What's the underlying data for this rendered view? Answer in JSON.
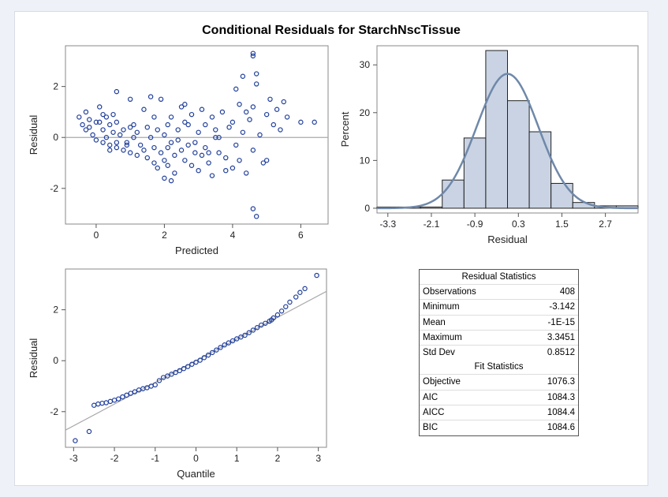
{
  "page_title": "Conditional Residuals for StarchNscTissue",
  "colors": {
    "marker": "#1f3e9b",
    "bar_fill": "#c9d3e3",
    "curve": "#6f88aa",
    "ref_line": "#aaaaaa"
  },
  "chart_data": [
    {
      "id": "residual_vs_predicted",
      "type": "scatter",
      "xlabel": "Predicted",
      "ylabel": "Residual",
      "xlim": [
        -0.9,
        6.8
      ],
      "ylim": [
        -3.4,
        3.6
      ],
      "xticks": [
        0,
        2,
        4,
        6
      ],
      "yticks": [
        -2,
        0,
        2
      ],
      "reference_line_y": 0,
      "points_note": "408 observations; representative subset reproduced",
      "x": [
        -0.5,
        -0.4,
        -0.3,
        -0.2,
        -0.2,
        -0.1,
        0.0,
        0.1,
        0.1,
        0.2,
        0.2,
        0.3,
        0.3,
        0.4,
        0.4,
        0.5,
        0.5,
        0.6,
        0.6,
        0.7,
        0.8,
        0.8,
        0.9,
        1.0,
        1.0,
        1.1,
        1.2,
        1.2,
        1.3,
        1.4,
        1.5,
        1.5,
        1.6,
        1.7,
        1.7,
        1.8,
        1.8,
        1.9,
        2.0,
        2.0,
        2.1,
        2.1,
        2.2,
        2.2,
        2.3,
        2.3,
        2.4,
        2.5,
        2.5,
        2.6,
        2.6,
        2.7,
        2.8,
        2.8,
        2.9,
        3.0,
        3.0,
        3.1,
        3.2,
        3.2,
        3.3,
        3.4,
        3.4,
        3.5,
        3.6,
        3.7,
        3.8,
        3.9,
        4.0,
        4.0,
        4.1,
        4.2,
        4.2,
        4.3,
        4.4,
        4.5,
        4.6,
        4.6,
        4.7,
        4.8,
        4.9,
        5.0,
        5.1,
        5.2,
        5.3,
        5.5,
        5.6,
        6.0,
        6.4,
        -0.3,
        0.2,
        0.6,
        1.1,
        1.6,
        2.1,
        2.6,
        3.1,
        3.6,
        4.1,
        4.6,
        4.6,
        4.7,
        4.6,
        4.7,
        0.6,
        1.9,
        2.4,
        3.3,
        0.0,
        0.9,
        1.4,
        2.7,
        3.8,
        4.3,
        5.0,
        5.4,
        2.0,
        2.9,
        1.0,
        0.4,
        1.7,
        3.5,
        4.4,
        2.2
      ],
      "y": [
        0.8,
        0.5,
        1.0,
        0.4,
        0.7,
        0.1,
        -0.1,
        0.6,
        1.2,
        0.3,
        -0.2,
        0.8,
        0.0,
        -0.3,
        0.5,
        0.9,
        0.2,
        -0.4,
        0.6,
        0.1,
        -0.5,
        0.3,
        -0.2,
        -0.6,
        0.4,
        0.0,
        -0.7,
        0.2,
        -0.3,
        -0.5,
        0.4,
        -0.8,
        0.0,
        -1.0,
        -0.4,
        0.3,
        -1.2,
        -0.6,
        0.1,
        -0.9,
        0.5,
        -1.1,
        -0.2,
        0.8,
        -0.7,
        -1.4,
        0.3,
        -0.5,
        1.2,
        -0.9,
        0.6,
        -0.3,
        -1.1,
        0.9,
        -0.6,
        0.2,
        -1.3,
        1.1,
        -0.4,
        0.5,
        -1.0,
        0.8,
        -1.5,
        0.3,
        -0.6,
        1.0,
        -0.8,
        0.4,
        -1.2,
        0.6,
        -0.3,
        1.3,
        -0.9,
        0.2,
        -1.4,
        0.7,
        -0.5,
        1.2,
        2.1,
        0.1,
        -1.0,
        0.9,
        1.5,
        0.5,
        1.1,
        1.4,
        0.8,
        0.6,
        0.6,
        0.3,
        0.9,
        -0.2,
        0.5,
        1.6,
        -0.4,
        1.3,
        -0.7,
        0.0,
        1.9,
        3.3,
        -2.8,
        -3.1,
        3.2,
        2.5,
        1.8,
        1.5,
        -0.1,
        -0.6,
        0.6,
        -0.3,
        1.1,
        0.5,
        -1.3,
        2.4,
        -0.9,
        0.3,
        -1.6,
        -0.2,
        1.5,
        -0.5,
        0.8,
        0.0,
        1.0,
        -1.7
      ]
    },
    {
      "id": "residual_histogram",
      "type": "bar",
      "xlabel": "Residual",
      "ylabel": "Percent",
      "xlim": [
        -3.6,
        3.6
      ],
      "ylim": [
        -1,
        34
      ],
      "xticks": [
        -3.3,
        -2.1,
        -0.9,
        0.3,
        1.5,
        2.7
      ],
      "yticks": [
        0,
        10,
        20,
        30
      ],
      "bin_edges": [
        -3.6,
        -3.0,
        -2.4,
        -1.8,
        -1.2,
        -0.6,
        0.0,
        0.6,
        1.2,
        1.8,
        2.4,
        3.0,
        3.6
      ],
      "values": [
        0.25,
        0.25,
        0.25,
        5.9,
        14.7,
        33.0,
        22.5,
        16.0,
        5.2,
        1.2,
        0.5,
        0.5
      ],
      "normal_curve": {
        "mean": 0.0,
        "sd": 0.8512,
        "bin_width": 0.6
      }
    },
    {
      "id": "qq_plot",
      "type": "scatter",
      "xlabel": "Quantile",
      "ylabel": "Residual",
      "xlim": [
        -3.2,
        3.2
      ],
      "ylim": [
        -3.4,
        3.6
      ],
      "xticks": [
        -3,
        -2,
        -1,
        0,
        1,
        2,
        3
      ],
      "yticks": [
        -2,
        0,
        2
      ],
      "reference_line": {
        "intercept": 0.0,
        "slope": 0.8512
      },
      "x": [
        -2.96,
        -2.62,
        -2.5,
        -2.4,
        -2.3,
        -2.2,
        -2.1,
        -2.0,
        -1.9,
        -1.8,
        -1.7,
        -1.6,
        -1.5,
        -1.4,
        -1.3,
        -1.2,
        -1.1,
        -1.0,
        -0.9,
        -0.8,
        -0.7,
        -0.6,
        -0.5,
        -0.4,
        -0.3,
        -0.2,
        -0.1,
        0.0,
        0.1,
        0.2,
        0.3,
        0.4,
        0.5,
        0.6,
        0.7,
        0.8,
        0.9,
        1.0,
        1.1,
        1.2,
        1.3,
        1.4,
        1.5,
        1.6,
        1.7,
        1.8,
        1.85,
        1.9,
        2.0,
        2.1,
        2.2,
        2.3,
        2.45,
        2.55,
        2.67,
        2.96
      ],
      "y": [
        -3.14,
        -2.78,
        -1.75,
        -1.7,
        -1.67,
        -1.65,
        -1.6,
        -1.55,
        -1.5,
        -1.42,
        -1.35,
        -1.28,
        -1.22,
        -1.15,
        -1.1,
        -1.06,
        -1.0,
        -0.95,
        -0.78,
        -0.66,
        -0.6,
        -0.53,
        -0.46,
        -0.39,
        -0.31,
        -0.23,
        -0.14,
        -0.06,
        0.02,
        0.12,
        0.22,
        0.32,
        0.42,
        0.52,
        0.62,
        0.7,
        0.78,
        0.86,
        0.93,
        1.0,
        1.1,
        1.2,
        1.3,
        1.4,
        1.47,
        1.55,
        1.6,
        1.68,
        1.8,
        1.95,
        2.12,
        2.3,
        2.5,
        2.68,
        2.83,
        3.35
      ]
    }
  ],
  "stats_table": {
    "residual_header": "Residual Statistics",
    "residual_rows": [
      {
        "label": "Observations",
        "value": "408"
      },
      {
        "label": "Minimum",
        "value": "-3.142"
      },
      {
        "label": "Mean",
        "value": "-1E-15"
      },
      {
        "label": "Maximum",
        "value": "3.3451"
      },
      {
        "label": "Std Dev",
        "value": "0.8512"
      }
    ],
    "fit_header": "Fit Statistics",
    "fit_rows": [
      {
        "label": "Objective",
        "value": "1076.3"
      },
      {
        "label": "AIC",
        "value": "1084.3"
      },
      {
        "label": "AICC",
        "value": "1084.4"
      },
      {
        "label": "BIC",
        "value": "1084.6"
      }
    ]
  }
}
